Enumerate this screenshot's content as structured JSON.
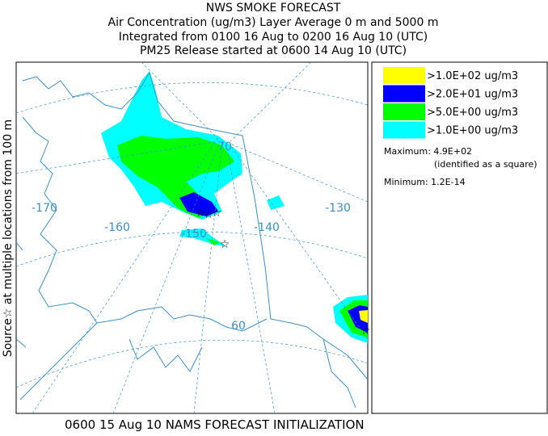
{
  "header": {
    "title": "NWS SMOKE FORECAST",
    "lines": [
      "Air Concentration (ug/m3) Layer Average    0 m and  5000 m",
      "Integrated from 0100 16 Aug to 0200 16 Aug 10 (UTC)",
      "PM25 Release started at 0600 14 Aug 10 (UTC)"
    ]
  },
  "side_label": "Source☆ at multiple locations  from  100 m",
  "legend": {
    "entries": [
      {
        "label": ">1.0E+02 ug/m3",
        "color": "#ffff00"
      },
      {
        "label": ">2.0E+01 ug/m3",
        "color": "#0000ff"
      },
      {
        "label": ">5.0E+00 ug/m3",
        "color": "#00ff00"
      },
      {
        "label": ">1.0E+00 ug/m3",
        "color": "#00ffff"
      }
    ],
    "maximum": "Maximum: 4.9E+02",
    "maximum_note": "(identified as a square)",
    "minimum": "Minimum: 1.2E-14"
  },
  "map_labels": [
    "-170",
    "-160",
    "-150",
    "-140",
    "-130",
    "70",
    "60"
  ],
  "footer": "0600 15 Aug 10 NAMS FORECAST INITIALIZATION"
}
